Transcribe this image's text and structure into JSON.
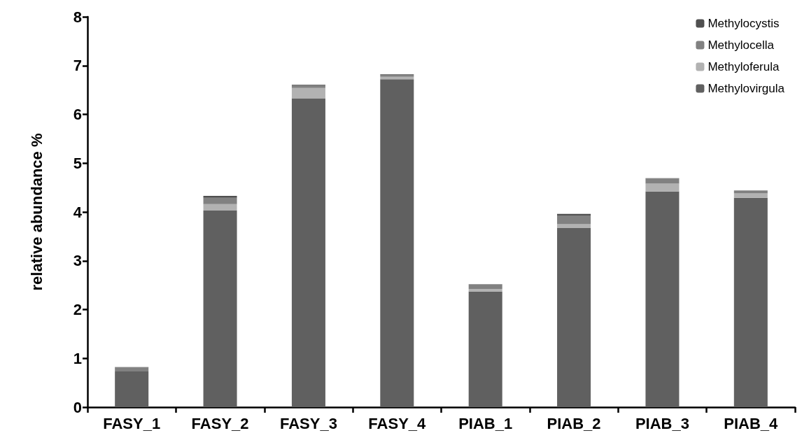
{
  "chart_data": {
    "type": "bar",
    "stacked": true,
    "ylabel": "relative abundance %",
    "categories": [
      "FASY_1",
      "FASY_2",
      "FASY_3",
      "FASY_4",
      "PIAB_1",
      "PIAB_2",
      "PIAB_3",
      "PIAB_4"
    ],
    "series": [
      {
        "name": "Methylovirgula",
        "color": "#606060",
        "values": [
          0.73,
          4.03,
          6.33,
          6.72,
          2.37,
          3.67,
          4.42,
          4.29
        ]
      },
      {
        "name": "Methyloferula",
        "color": "#b2b2b2",
        "values": [
          null,
          0.13,
          0.21,
          0.05,
          0.05,
          0.08,
          0.16,
          0.09
        ]
      },
      {
        "name": "Methylocella",
        "color": "#818181",
        "values": [
          0.08,
          0.13,
          0.06,
          0.04,
          0.1,
          0.18,
          0.1,
          0.06
        ]
      },
      {
        "name": "Methylocystis",
        "color": "#505050",
        "values": [
          0.01,
          0.04,
          0.01,
          0.01,
          null,
          0.03,
          0.01,
          null
        ]
      }
    ],
    "ylim": [
      0,
      8
    ],
    "yticks": [
      0,
      1,
      2,
      3,
      4,
      5,
      6,
      7,
      8
    ],
    "grid": false,
    "legend": "top right"
  }
}
